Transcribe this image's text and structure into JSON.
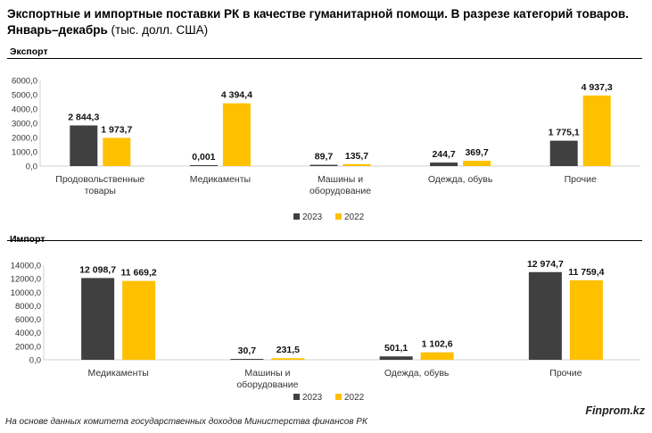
{
  "header": {
    "title_bold": "Экспортные и импортные поставки РК в качестве гуманитарной помощи. В разрезе категорий товаров. Январь–декабрь",
    "title_unit": " (тыс. долл. США)"
  },
  "sections": {
    "export_label": "Экспорт",
    "import_label": "Импорт"
  },
  "footer": {
    "source": "На основе данных комитета государственных доходов Министерства финансов РК",
    "brand": "Finprom.kz"
  },
  "colors": {
    "series_2023": "#404040",
    "series_2022": "#FFC000",
    "axis": "#d0d0d0"
  },
  "chart_data": [
    {
      "type": "bar",
      "name": "export",
      "categories": [
        "Продовольственные товары",
        "Медикаменты",
        "Машины и оборудование",
        "Одежда, обувь",
        "Прочие"
      ],
      "series": [
        {
          "name": "2023",
          "values": [
            2844.3,
            0.001,
            89.7,
            244.7,
            1775.1
          ],
          "labels": [
            "2 844,3",
            "0,001",
            "89,7",
            "244,7",
            "1 775,1"
          ]
        },
        {
          "name": "2022",
          "values": [
            1973.7,
            4394.4,
            135.7,
            369.7,
            4937.3
          ],
          "labels": [
            "1 973,7",
            "4 394,4",
            "135,7",
            "369,7",
            "4 937,3"
          ]
        }
      ],
      "ylim": [
        0,
        6000
      ],
      "yticks": [
        0,
        1000,
        2000,
        3000,
        4000,
        5000,
        6000
      ],
      "ytick_labels": [
        "0,0",
        "1000,0",
        "2000,0",
        "3000,0",
        "4000,0",
        "5000,0",
        "6000,0"
      ],
      "legend": "bottom-center"
    },
    {
      "type": "bar",
      "name": "import",
      "categories": [
        "Медикаменты",
        "Машины и оборудование",
        "Одежда, обувь",
        "Прочие"
      ],
      "series": [
        {
          "name": "2023",
          "values": [
            12098.7,
            30.7,
            501.1,
            12974.7
          ],
          "labels": [
            "12 098,7",
            "30,7",
            "501,1",
            "12 974,7"
          ]
        },
        {
          "name": "2022",
          "values": [
            11669.2,
            231.5,
            1102.6,
            11759.4
          ],
          "labels": [
            "11 669,2",
            "231,5",
            "1 102,6",
            "11 759,4"
          ]
        }
      ],
      "ylim": [
        0,
        14000
      ],
      "yticks": [
        0,
        2000,
        4000,
        6000,
        8000,
        10000,
        12000,
        14000
      ],
      "ytick_labels": [
        "0,0",
        "2000,0",
        "4000,0",
        "6000,0",
        "8000,0",
        "10000,0",
        "12000,0",
        "14000,0"
      ],
      "legend": "bottom-center"
    }
  ]
}
